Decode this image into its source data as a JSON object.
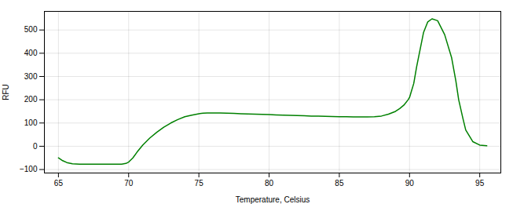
{
  "chart_data": {
    "type": "line",
    "xlabel": "Temperature, Celsius",
    "ylabel": "RFU",
    "color": "#008000",
    "grid": true,
    "xlim": [
      64.0,
      96.5
    ],
    "ylim": [
      -115,
      580
    ],
    "xticks": [
      65,
      70,
      75,
      80,
      85,
      90,
      95
    ],
    "yticks": [
      -100,
      0,
      100,
      200,
      300,
      400,
      500
    ],
    "x": [
      65.0,
      65.3,
      65.6,
      66.0,
      66.5,
      67.0,
      67.5,
      68.0,
      68.5,
      69.0,
      69.5,
      69.8,
      70.0,
      70.3,
      70.6,
      71.0,
      71.5,
      72.0,
      72.5,
      73.0,
      73.5,
      74.0,
      74.5,
      75.0,
      75.3,
      75.6,
      76.0,
      76.5,
      77.0,
      77.5,
      78.0,
      78.5,
      79.0,
      79.5,
      80.0,
      80.5,
      81.0,
      81.5,
      82.0,
      82.5,
      83.0,
      83.5,
      84.0,
      84.5,
      85.0,
      85.5,
      86.0,
      86.5,
      87.0,
      87.5,
      88.0,
      88.5,
      89.0,
      89.3,
      89.6,
      89.9,
      90.0,
      90.1,
      90.3,
      90.5,
      90.8,
      91.0,
      91.3,
      91.6,
      92.0,
      92.5,
      93.0,
      93.3,
      93.5,
      93.8,
      94.0,
      94.5,
      95.0,
      95.5
    ],
    "values": [
      -50,
      -62,
      -70,
      -75,
      -77,
      -77,
      -77,
      -77,
      -77,
      -77,
      -77,
      -74,
      -68,
      -50,
      -25,
      5,
      35,
      60,
      82,
      100,
      115,
      127,
      134,
      140,
      142,
      143,
      143,
      143,
      142,
      141,
      140,
      139,
      138,
      137,
      136,
      135,
      134,
      133,
      132,
      131,
      130,
      130,
      129,
      128,
      127,
      127,
      126,
      126,
      126,
      127,
      130,
      138,
      150,
      162,
      177,
      200,
      210,
      230,
      270,
      340,
      430,
      490,
      535,
      548,
      540,
      480,
      380,
      280,
      200,
      120,
      70,
      20,
      5,
      2
    ]
  }
}
